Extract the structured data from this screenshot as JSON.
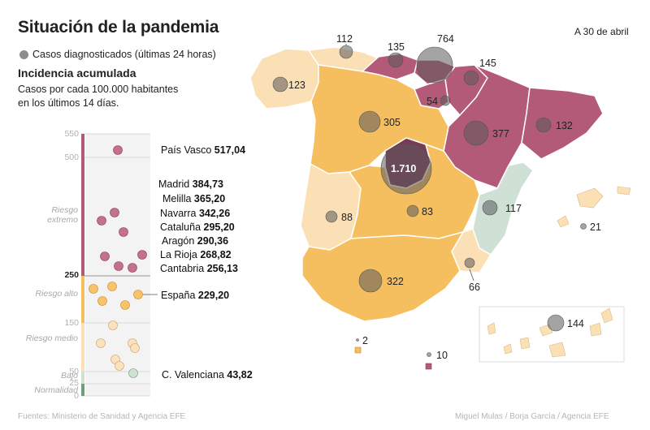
{
  "header": {
    "title": "Situación de la pandemia",
    "date": "A 30 de abril",
    "legend_cases": "Casos diagnosticados (últimas 24 horas)",
    "incidence_title": "Incidencia acumulada",
    "incidence_sub1": "Casos por cada 100.000 habitantes",
    "incidence_sub2": "en los últimos 14 días."
  },
  "scale": {
    "ticks": [
      "550",
      "500",
      "250",
      "150",
      "50",
      "25",
      "0"
    ],
    "zones": [
      "Riesgo extremo",
      "Riesgo alto",
      "Riesgo medio",
      "Bajo",
      "Normalidad"
    ],
    "colors": {
      "extremo": "#b35a78",
      "alto": "#f5bf60",
      "medio": "#fbe0b5",
      "bajo": "#cfe0d4",
      "normalidad": "#6e9f7a"
    }
  },
  "incidence_labels": [
    {
      "name": "País Vasco",
      "value": "517,04"
    },
    {
      "name": "Madrid",
      "value": "384,73"
    },
    {
      "name": "Melilla",
      "value": "365,20"
    },
    {
      "name": "Navarra",
      "value": "342,26"
    },
    {
      "name": "Cataluña",
      "value": "295,20"
    },
    {
      "name": "Aragón",
      "value": "290,36"
    },
    {
      "name": "La Rioja",
      "value": "268,82"
    },
    {
      "name": "Cantabria",
      "value": "256,13"
    },
    {
      "name": "España",
      "value": "229,20"
    },
    {
      "name": "C. Valenciana",
      "value": "43,82"
    }
  ],
  "map_cases": [
    {
      "region": "Galicia",
      "cases": "123"
    },
    {
      "region": "Asturias",
      "cases": "112"
    },
    {
      "region": "Cantabria",
      "cases": "135"
    },
    {
      "region": "País Vasco",
      "cases": "764"
    },
    {
      "region": "Navarra",
      "cases": "145"
    },
    {
      "region": "La Rioja",
      "cases": "54"
    },
    {
      "region": "Castilla y León",
      "cases": "305"
    },
    {
      "region": "Aragón",
      "cases": "377"
    },
    {
      "region": "Cataluña",
      "cases": "132"
    },
    {
      "region": "Madrid",
      "cases": "1.710"
    },
    {
      "region": "Extremadura",
      "cases": "88"
    },
    {
      "region": "Castilla-La Mancha",
      "cases": "83"
    },
    {
      "region": "C. Valenciana",
      "cases": "117"
    },
    {
      "region": "Baleares",
      "cases": "21"
    },
    {
      "region": "Andalucía",
      "cases": "322"
    },
    {
      "region": "Murcia",
      "cases": "66"
    },
    {
      "region": "Canarias",
      "cases": "144"
    },
    {
      "region": "Ceuta",
      "cases": "2"
    },
    {
      "region": "Melilla",
      "cases": "10"
    }
  ],
  "footer": {
    "source": "Fuentes: Ministerio de Sanidad y Agencia EFE",
    "credit": "Miguel Mulas / Borja García / Agencia EFE"
  }
}
